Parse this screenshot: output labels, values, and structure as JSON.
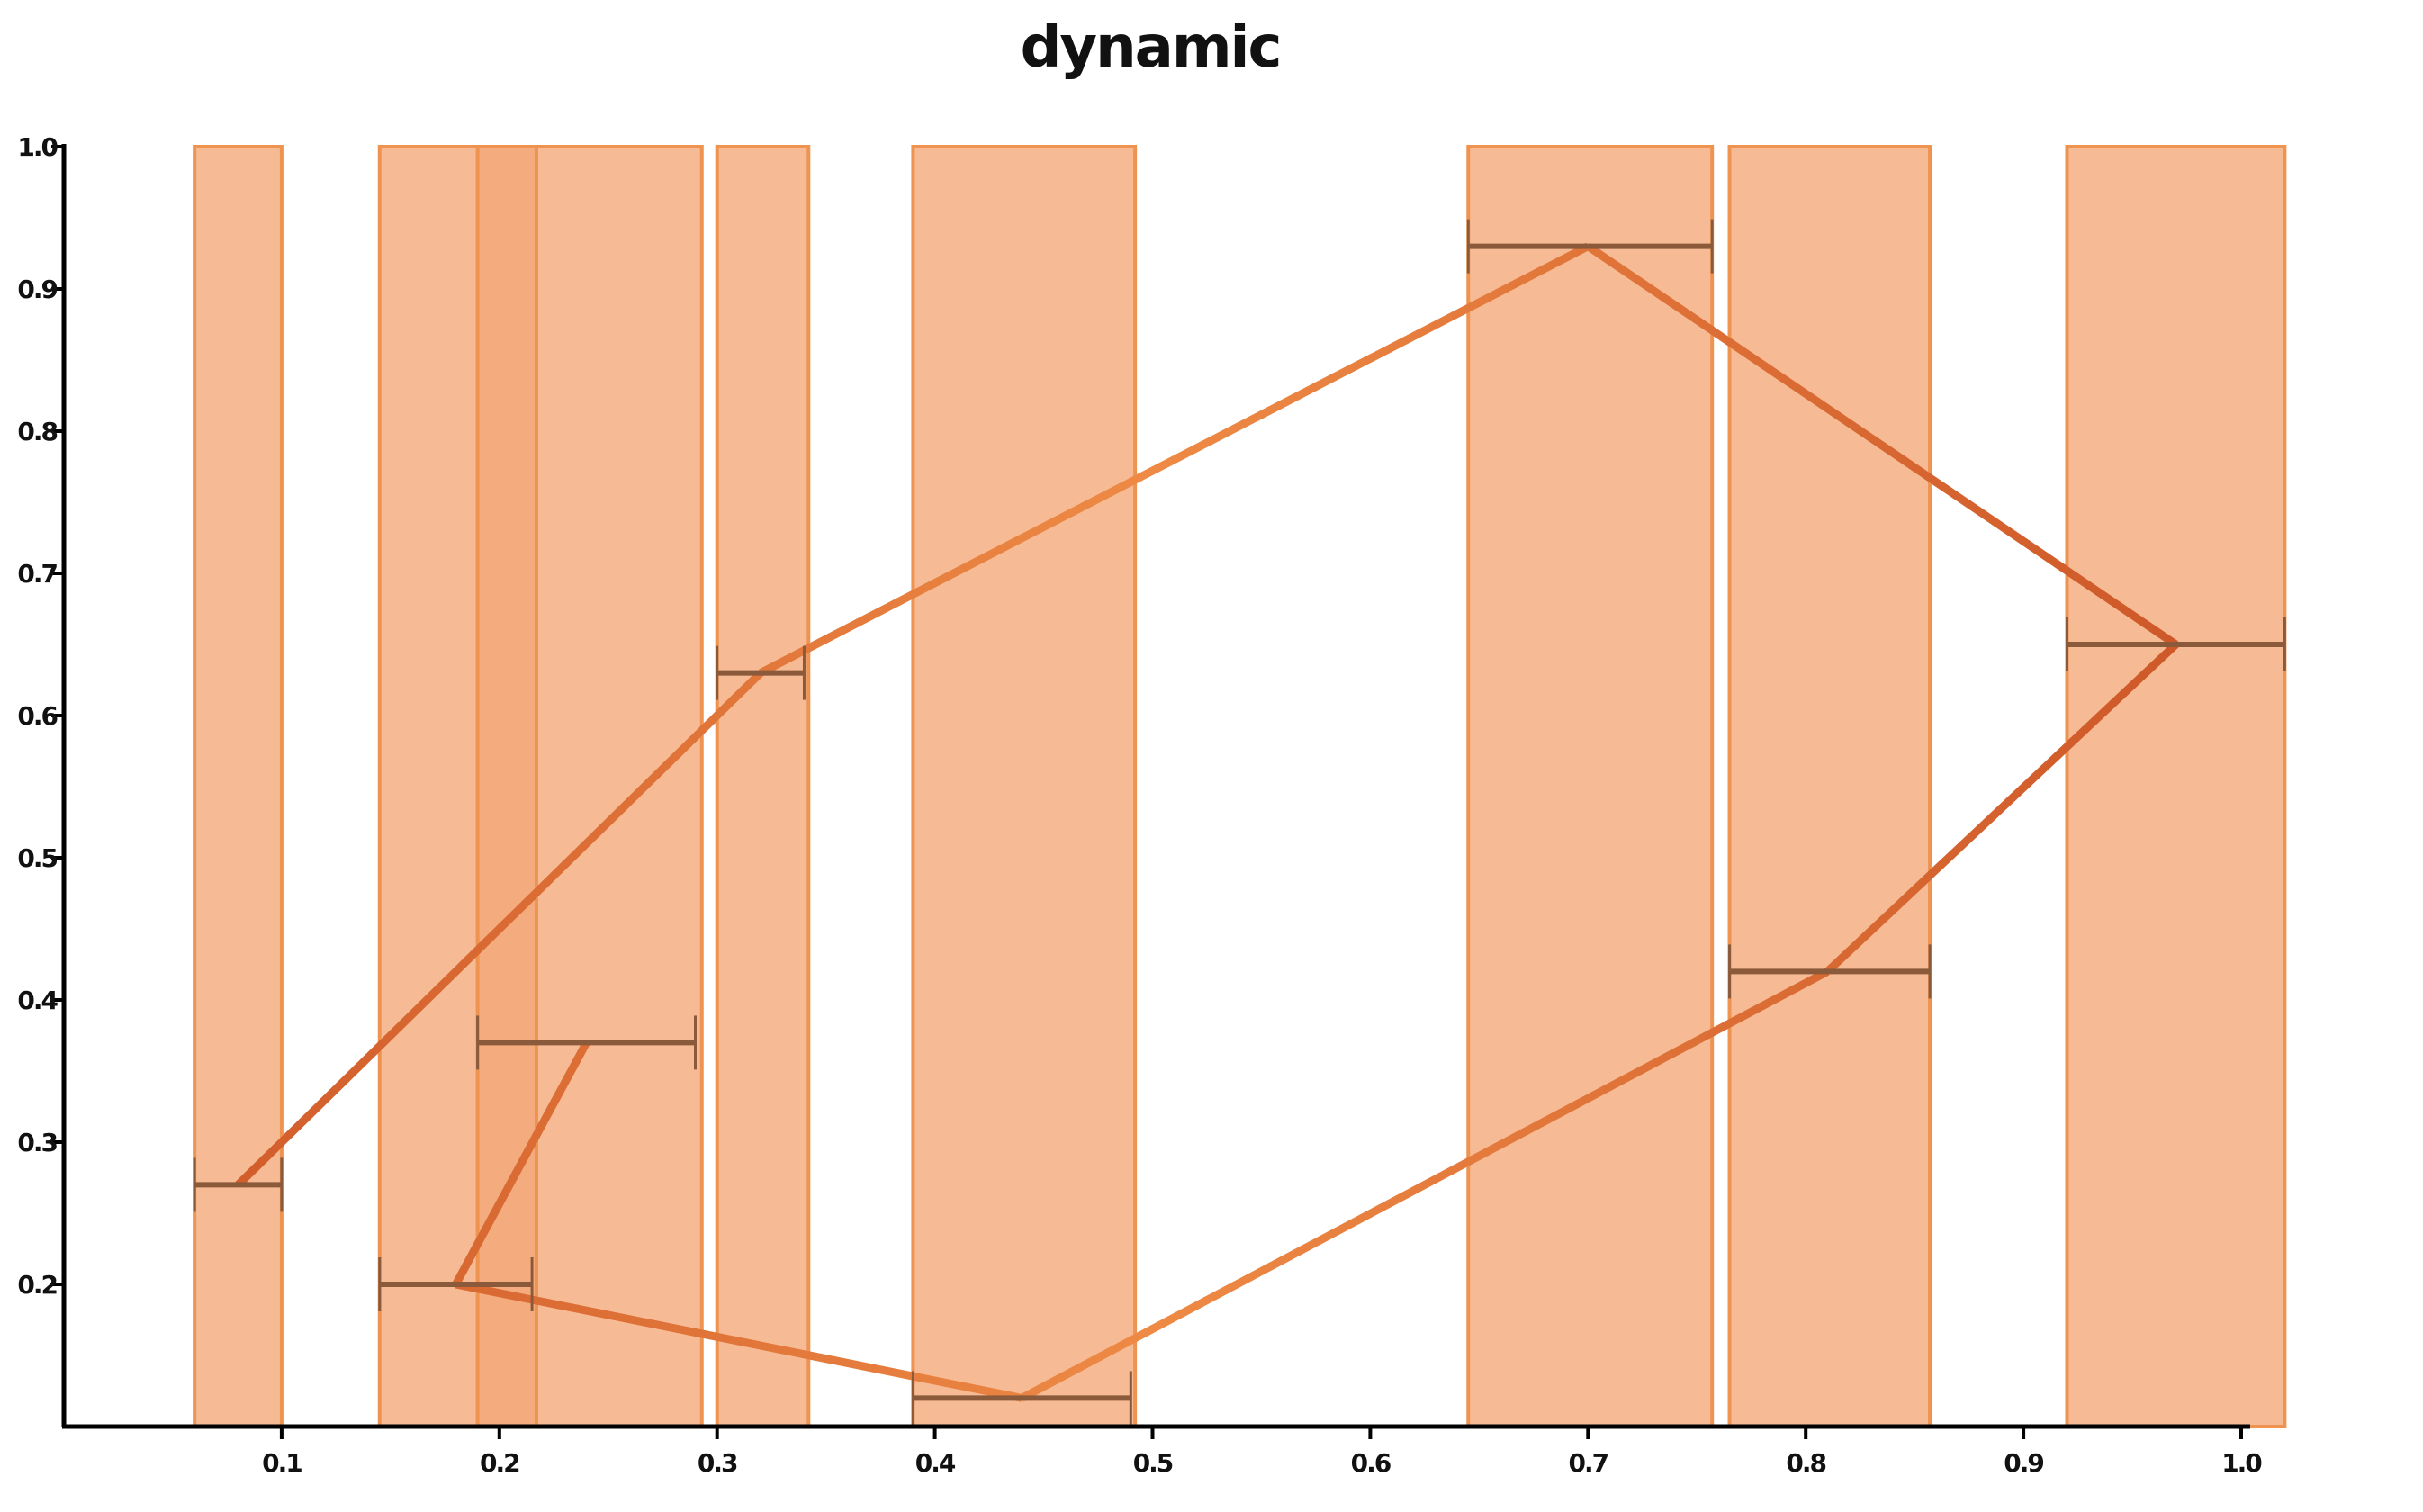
{
  "chart_data": {
    "type": "line",
    "title": "dynamic",
    "xlabel": "",
    "ylabel": "",
    "xlim": [
      0.0,
      1.0
    ],
    "ylim": [
      0.1,
      1.0
    ],
    "xticks": [
      "0.1",
      "0.2",
      "0.3",
      "0.4",
      "0.5",
      "0.6",
      "0.7",
      "0.8",
      "0.9",
      "1.0"
    ],
    "yticks": [
      "0.2",
      "0.3",
      "0.4",
      "0.5",
      "0.6",
      "0.7",
      "0.8",
      "0.9",
      "1.0"
    ],
    "grid": false,
    "points": [
      {
        "x": 0.08,
        "y": 0.27,
        "xerr_low": 0.06,
        "xerr_high": 0.1
      },
      {
        "x": 0.32,
        "y": 0.63,
        "xerr_low": 0.3,
        "xerr_high": 0.34
      },
      {
        "x": 0.7,
        "y": 0.93,
        "xerr_low": 0.645,
        "xerr_high": 0.757
      },
      {
        "x": 0.97,
        "y": 0.65,
        "xerr_low": 0.92,
        "xerr_high": 1.02
      },
      {
        "x": 0.81,
        "y": 0.42,
        "xerr_low": 0.765,
        "xerr_high": 0.857
      },
      {
        "x": 0.44,
        "y": 0.12,
        "xerr_low": 0.39,
        "xerr_high": 0.49
      },
      {
        "x": 0.18,
        "y": 0.2,
        "xerr_low": 0.145,
        "xerr_high": 0.215
      },
      {
        "x": 0.24,
        "y": 0.37,
        "xerr_low": 0.19,
        "xerr_high": 0.29
      }
    ],
    "bands": [
      [
        0.06,
        0.1
      ],
      [
        0.145,
        0.293
      ],
      [
        0.19,
        0.217
      ],
      [
        0.3,
        0.342
      ],
      [
        0.39,
        0.492
      ],
      [
        0.645,
        0.757
      ],
      [
        0.765,
        0.857
      ],
      [
        0.92,
        1.02
      ]
    ],
    "colors": {
      "line_start": "#cc5527",
      "line_mid": "#ee8a45",
      "band_fill": "#f4a877",
      "band_edge": "#ee9350",
      "error_bar": "#8a5a3a"
    }
  }
}
